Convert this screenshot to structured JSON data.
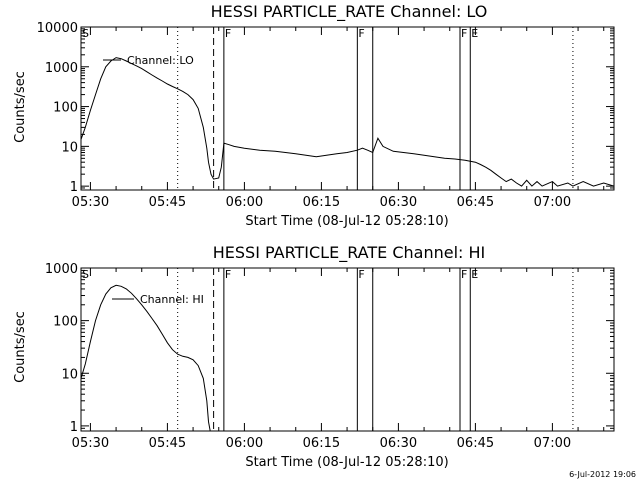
{
  "footer_timestamp": "6-Jul-2012 19:06",
  "chart_data": [
    {
      "type": "line",
      "title": "HESSI PARTICLE_RATE Channel: LO",
      "xlabel": "Start Time (08-Jul-12 05:28:10)",
      "ylabel": "Counts/sec",
      "y_scale": "log",
      "xlim": [
        "05:28:10",
        "07:12:00"
      ],
      "ylim": [
        0.8,
        10000
      ],
      "x_tick_labels": [
        "05:30",
        "05:45",
        "06:00",
        "06:15",
        "06:30",
        "06:45",
        "07:00"
      ],
      "y_tick_labels": [
        "1",
        "10",
        "100",
        "1000",
        "10000"
      ],
      "y_tick_values": [
        1,
        10,
        100,
        1000,
        10000
      ],
      "legend": "Channel: LO",
      "markers": [
        {
          "time": "05:28:10",
          "label": "S",
          "style": "solid"
        },
        {
          "time": "05:47",
          "label": "",
          "style": "dotted"
        },
        {
          "time": "05:54",
          "label": "",
          "style": "dashed"
        },
        {
          "time": "05:56",
          "label": "F",
          "style": "solid"
        },
        {
          "time": "06:22",
          "label": "F",
          "style": "solid"
        },
        {
          "time": "06:25",
          "label": "",
          "style": "solid"
        },
        {
          "time": "06:42",
          "label": "F",
          "style": "solid"
        },
        {
          "time": "06:44",
          "label": "E",
          "style": "solid"
        },
        {
          "time": "07:04",
          "label": "",
          "style": "dotted"
        }
      ],
      "series": [
        {
          "style": "solid",
          "points": [
            [
              "05:28:10",
              15
            ],
            [
              "05:29",
              30
            ],
            [
              "05:30",
              80
            ],
            [
              "05:31",
              200
            ],
            [
              "05:32",
              500
            ],
            [
              "05:33",
              1000
            ],
            [
              "05:34",
              1400
            ],
            [
              "05:35",
              1700
            ],
            [
              "05:36",
              1600
            ],
            [
              "05:37",
              1400
            ],
            [
              "05:38",
              1200
            ],
            [
              "05:39",
              1050
            ],
            [
              "05:40",
              900
            ],
            [
              "05:41",
              750
            ],
            [
              "05:42",
              620
            ],
            [
              "05:43",
              520
            ],
            [
              "05:44",
              440
            ],
            [
              "05:45",
              370
            ],
            [
              "05:46",
              320
            ],
            [
              "05:47",
              280
            ],
            [
              "05:48",
              240
            ],
            [
              "05:49",
              200
            ],
            [
              "05:50",
              150
            ],
            [
              "05:51",
              90
            ],
            [
              "05:52",
              30
            ],
            [
              "05:52:40",
              9
            ],
            [
              "05:53",
              4
            ],
            [
              "05:53:30",
              2
            ],
            [
              "05:54",
              1.5
            ],
            [
              "05:55",
              1.6
            ],
            [
              "05:55:30",
              3
            ],
            [
              "05:56",
              12
            ],
            [
              "05:57",
              11
            ],
            [
              "05:58",
              10
            ],
            [
              "06:00",
              9
            ],
            [
              "06:03",
              8
            ],
            [
              "06:06",
              7.5
            ],
            [
              "06:08",
              7
            ],
            [
              "06:10",
              6.5
            ],
            [
              "06:12",
              6
            ],
            [
              "06:14",
              5.5
            ],
            [
              "06:16",
              6
            ],
            [
              "06:18",
              6.5
            ],
            [
              "06:20",
              7
            ],
            [
              "06:22",
              8
            ],
            [
              "06:23",
              9
            ],
            [
              "06:24",
              8
            ],
            [
              "06:25",
              7
            ],
            [
              "06:26",
              16
            ],
            [
              "06:27",
              10
            ],
            [
              "06:29",
              7.5
            ],
            [
              "06:31",
              7
            ],
            [
              "06:33",
              6.5
            ],
            [
              "06:35",
              6
            ],
            [
              "06:37",
              5.5
            ],
            [
              "06:39",
              5
            ],
            [
              "06:41",
              4.8
            ],
            [
              "06:43",
              4.5
            ],
            [
              "06:45",
              4
            ],
            [
              "06:46",
              3.5
            ],
            [
              "06:47",
              3
            ],
            [
              "06:48",
              2.5
            ],
            [
              "06:49",
              2
            ],
            [
              "06:50",
              1.6
            ],
            [
              "06:51",
              1.3
            ],
            [
              "06:52",
              1.5
            ],
            [
              "06:53",
              1.2
            ],
            [
              "06:54",
              1.0
            ],
            [
              "06:55",
              1.4
            ],
            [
              "06:56",
              1.0
            ],
            [
              "06:57",
              1.3
            ],
            [
              "06:58",
              1.0
            ],
            [
              "07:00",
              1.3
            ],
            [
              "07:01",
              1.0
            ],
            [
              "07:03",
              1.2
            ],
            [
              "07:04",
              1.0
            ],
            [
              "07:06",
              1.3
            ],
            [
              "07:08",
              1.0
            ],
            [
              "07:10",
              1.2
            ],
            [
              "07:12",
              1.0
            ]
          ]
        }
      ]
    },
    {
      "type": "line",
      "title": "HESSI PARTICLE_RATE Channel: HI",
      "xlabel": "Start Time (08-Jul-12 05:28:10)",
      "ylabel": "Counts/sec",
      "y_scale": "log",
      "xlim": [
        "05:28:10",
        "07:12:00"
      ],
      "ylim": [
        0.8,
        1000
      ],
      "x_tick_labels": [
        "05:30",
        "05:45",
        "06:00",
        "06:15",
        "06:30",
        "06:45",
        "07:00"
      ],
      "y_tick_labels": [
        "1",
        "10",
        "100",
        "1000"
      ],
      "y_tick_values": [
        1,
        10,
        100,
        1000
      ],
      "legend": "Channel: HI",
      "markers": [
        {
          "time": "05:28:10",
          "label": "S",
          "style": "solid"
        },
        {
          "time": "05:47",
          "label": "",
          "style": "dotted"
        },
        {
          "time": "05:54",
          "label": "",
          "style": "dashed"
        },
        {
          "time": "05:56",
          "label": "F",
          "style": "solid"
        },
        {
          "time": "06:22",
          "label": "F",
          "style": "solid"
        },
        {
          "time": "06:25",
          "label": "",
          "style": "solid"
        },
        {
          "time": "06:42",
          "label": "F",
          "style": "solid"
        },
        {
          "time": "06:44",
          "label": "E",
          "style": "solid"
        },
        {
          "time": "07:04",
          "label": "",
          "style": "dotted"
        }
      ],
      "series": [
        {
          "style": "solid",
          "points": [
            [
              "05:28:10",
              8
            ],
            [
              "05:29",
              15
            ],
            [
              "05:30",
              40
            ],
            [
              "05:31",
              100
            ],
            [
              "05:32",
              200
            ],
            [
              "05:33",
              320
            ],
            [
              "05:34",
              420
            ],
            [
              "05:35",
              470
            ],
            [
              "05:36",
              450
            ],
            [
              "05:37",
              400
            ],
            [
              "05:38",
              330
            ],
            [
              "05:39",
              260
            ],
            [
              "05:40",
              200
            ],
            [
              "05:41",
              150
            ],
            [
              "05:42",
              110
            ],
            [
              "05:43",
              80
            ],
            [
              "05:44",
              55
            ],
            [
              "05:45",
              38
            ],
            [
              "05:46",
              28
            ],
            [
              "05:47",
              23
            ],
            [
              "05:48",
              21
            ],
            [
              "05:49",
              20
            ],
            [
              "05:50",
              18
            ],
            [
              "05:51",
              14
            ],
            [
              "05:52",
              8
            ],
            [
              "05:52:40",
              3
            ],
            [
              "05:53",
              1.2
            ],
            [
              "05:53:20",
              0.8
            ]
          ]
        }
      ]
    }
  ]
}
